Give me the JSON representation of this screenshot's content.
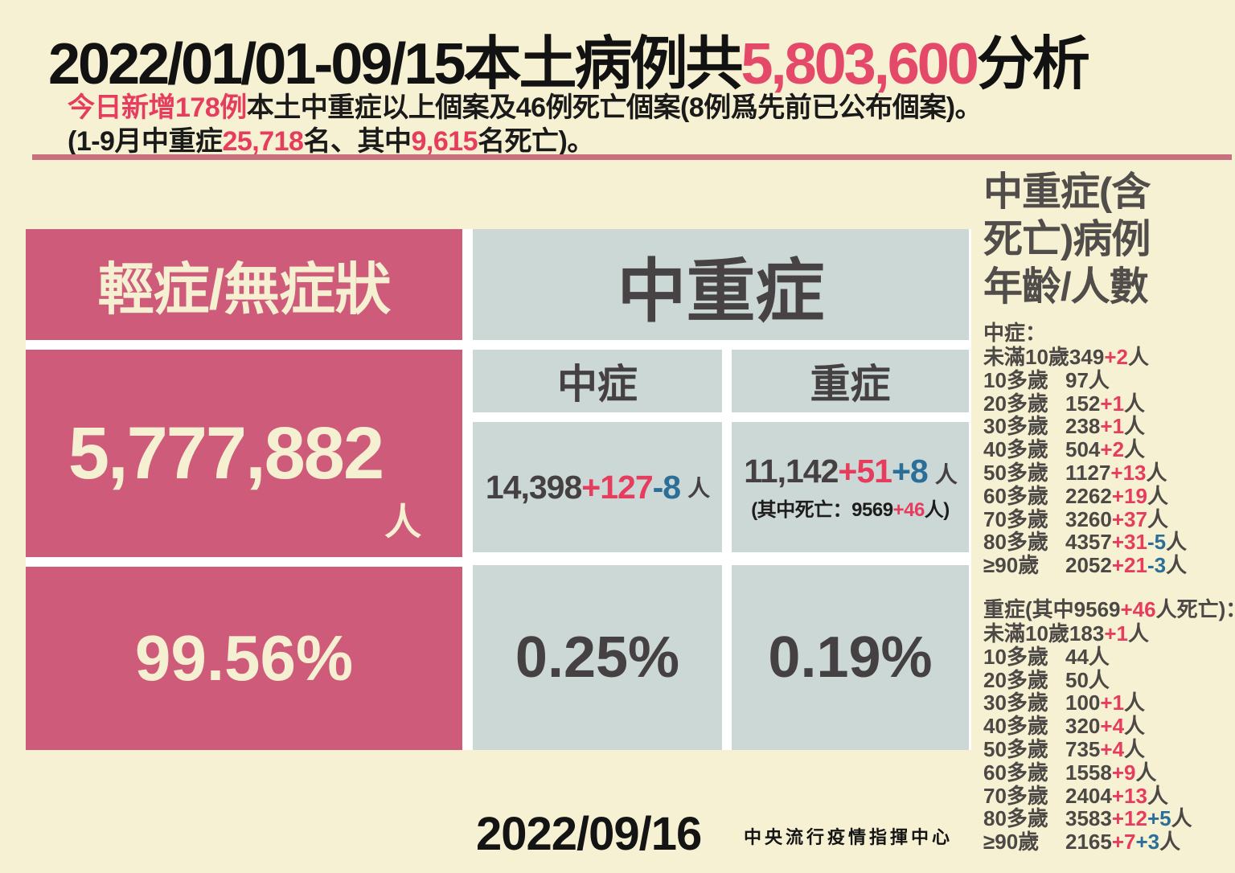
{
  "header": {
    "title_pre": "2022/01/01-09/15本土病例共",
    "title_highlight": "5,803,600",
    "title_post": "分析",
    "sub1_red": "今日新增178例",
    "sub1_black": "本土中重症以上個案及46例死亡個案(8例爲先前已公布個案)。",
    "sub2_p1": "(1-9月中重症",
    "sub2_r1": "25,718",
    "sub2_p2": "名、其中",
    "sub2_r2": "9,615",
    "sub2_p3": "名死亡)。"
  },
  "mild": {
    "title": "輕症/無症狀",
    "count": "5,777,882",
    "count_unit": "人",
    "percent": "99.56%"
  },
  "moderate_severe": {
    "title": "中重症",
    "moderate": {
      "label": "中症",
      "base": "14,398",
      "add": "+127",
      "adjust": "-8",
      "unit": "人",
      "percent": "0.25%"
    },
    "severe": {
      "label": "重症",
      "base": "11,142",
      "add": "+51",
      "adjust": "+8",
      "unit": "人",
      "note_p1": "(其中死亡：9569",
      "note_red": "+46",
      "note_p2": "人)",
      "percent": "0.19%"
    }
  },
  "sidebar": {
    "title_line1": "中重症(含",
    "title_line2": "死亡)病例",
    "title_line3": "年齡/人數",
    "moderate_header": "中症：",
    "moderate_rows": [
      {
        "label": "未滿10歲",
        "value": "349",
        "add": "+2",
        "adjust": "",
        "unit": "人"
      },
      {
        "label": "10多歲",
        "value": "97",
        "add": "",
        "adjust": "",
        "unit": "人"
      },
      {
        "label": "20多歲",
        "value": "152",
        "add": "+1",
        "adjust": "",
        "unit": "人"
      },
      {
        "label": "30多歲",
        "value": "238",
        "add": "+1",
        "adjust": "",
        "unit": "人"
      },
      {
        "label": "40多歲",
        "value": "504",
        "add": "+2",
        "adjust": "",
        "unit": "人"
      },
      {
        "label": "50多歲",
        "value": "1127",
        "add": "+13",
        "adjust": "",
        "unit": "人"
      },
      {
        "label": "60多歲",
        "value": "2262",
        "add": "+19",
        "adjust": "",
        "unit": "人"
      },
      {
        "label": "70多歲",
        "value": "3260",
        "add": "+37",
        "adjust": "",
        "unit": "人"
      },
      {
        "label": "80多歲",
        "value": "4357",
        "add": "+31",
        "adjust": "-5",
        "unit": "人"
      },
      {
        "label": "≥90歲",
        "value": "2052",
        "add": "+21",
        "adjust": "-3",
        "unit": "人"
      }
    ],
    "severe_header_p1": "重症(其中9569",
    "severe_header_red": "+46",
    "severe_header_p2": "人死亡)：",
    "severe_rows": [
      {
        "label": "未滿10歲",
        "value": "183",
        "add": "+1",
        "adjust": "",
        "unit": "人"
      },
      {
        "label": "10多歲",
        "value": "44",
        "add": "",
        "adjust": "",
        "unit": "人"
      },
      {
        "label": "20多歲",
        "value": "50",
        "add": "",
        "adjust": "",
        "unit": "人"
      },
      {
        "label": "30多歲",
        "value": "100",
        "add": "+1",
        "adjust": "",
        "unit": "人"
      },
      {
        "label": "40多歲",
        "value": "320",
        "add": "+4",
        "adjust": "",
        "unit": "人"
      },
      {
        "label": "50多歲",
        "value": "735",
        "add": "+4",
        "adjust": "",
        "unit": "人"
      },
      {
        "label": "60多歲",
        "value": "1558",
        "add": "+9",
        "adjust": "",
        "unit": "人"
      },
      {
        "label": "70多歲",
        "value": "2404",
        "add": "+13",
        "adjust": "",
        "unit": "人"
      },
      {
        "label": "80多歲",
        "value": "3583",
        "add": "+12",
        "adjust": "+5",
        "unit": "人"
      },
      {
        "label": "≥90歲",
        "value": "2165",
        "add": "+7",
        "adjust": "+3",
        "unit": "人"
      }
    ]
  },
  "footer": {
    "date": "2022/09/16",
    "org": "中央流行疫情指揮中心"
  },
  "colors": {
    "background": "#f6f1d2",
    "pink_panel": "#ce5b79",
    "gray_panel": "#ccd8d5",
    "accent_red": "#e63c5e",
    "accent_blue": "#2b6f99",
    "divider_rose": "#c9707e",
    "highlight_pink": "#e4496a"
  }
}
